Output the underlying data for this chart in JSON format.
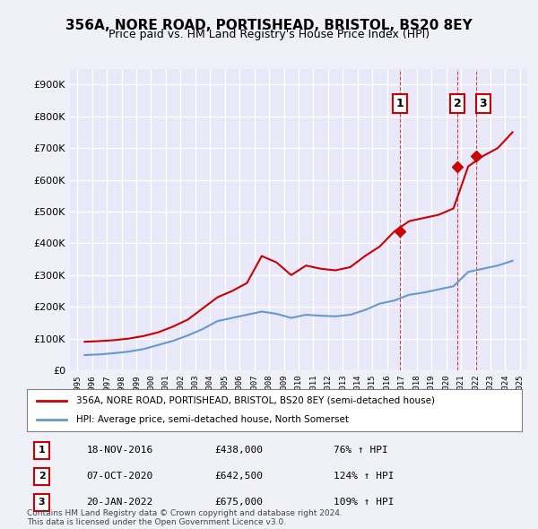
{
  "title": "356A, NORE ROAD, PORTISHEAD, BRISTOL, BS20 8EY",
  "subtitle": "Price paid vs. HM Land Registry's House Price Index (HPI)",
  "ylabel": "",
  "ylim": [
    0,
    950000
  ],
  "yticks": [
    0,
    100000,
    200000,
    300000,
    400000,
    500000,
    600000,
    700000,
    800000,
    900000
  ],
  "ytick_labels": [
    "£0",
    "£100K",
    "£200K",
    "£300K",
    "£400K",
    "£500K",
    "£600K",
    "£700K",
    "£800K",
    "£900K"
  ],
  "background_color": "#f0f0ff",
  "plot_bg_color": "#e8e8f8",
  "grid_color": "#ffffff",
  "red_color": "#cc0000",
  "blue_color": "#6699cc",
  "marker_color": "#cc0000",
  "transactions": [
    {
      "label": "1",
      "date": "18-NOV-2016",
      "price": 438000,
      "pct": "76%",
      "x": 2016.88
    },
    {
      "label": "2",
      "date": "07-OCT-2020",
      "price": 642500,
      "pct": "124%",
      "x": 2020.77
    },
    {
      "label": "3",
      "date": "20-JAN-2022",
      "price": 675000,
      "pct": "109%",
      "x": 2022.05
    }
  ],
  "legend_label_red": "356A, NORE ROAD, PORTISHEAD, BRISTOL, BS20 8EY (semi-detached house)",
  "legend_label_blue": "HPI: Average price, semi-detached house, North Somerset",
  "footer": "Contains HM Land Registry data © Crown copyright and database right 2024.\nThis data is licensed under the Open Government Licence v3.0.",
  "hpi_data": {
    "years": [
      1995,
      1996,
      1997,
      1998,
      1999,
      2000,
      2001,
      2002,
      2003,
      2004,
      2005,
      2006,
      2007,
      2008,
      2009,
      2010,
      2011,
      2012,
      2013,
      2014,
      2015,
      2016,
      2017,
      2018,
      2019,
      2020,
      2021,
      2022,
      2023,
      2024
    ],
    "hpi_values": [
      48000,
      50000,
      54000,
      59000,
      67000,
      80000,
      93000,
      110000,
      130000,
      155000,
      165000,
      175000,
      185000,
      178000,
      165000,
      175000,
      172000,
      170000,
      175000,
      190000,
      210000,
      220000,
      238000,
      245000,
      255000,
      265000,
      310000,
      320000,
      330000,
      345000
    ],
    "price_values": [
      90000,
      92000,
      95000,
      100000,
      108000,
      120000,
      138000,
      160000,
      195000,
      230000,
      250000,
      275000,
      360000,
      340000,
      300000,
      330000,
      320000,
      315000,
      325000,
      360000,
      390000,
      438000,
      470000,
      480000,
      490000,
      510000,
      642500,
      675000,
      700000,
      750000
    ]
  }
}
